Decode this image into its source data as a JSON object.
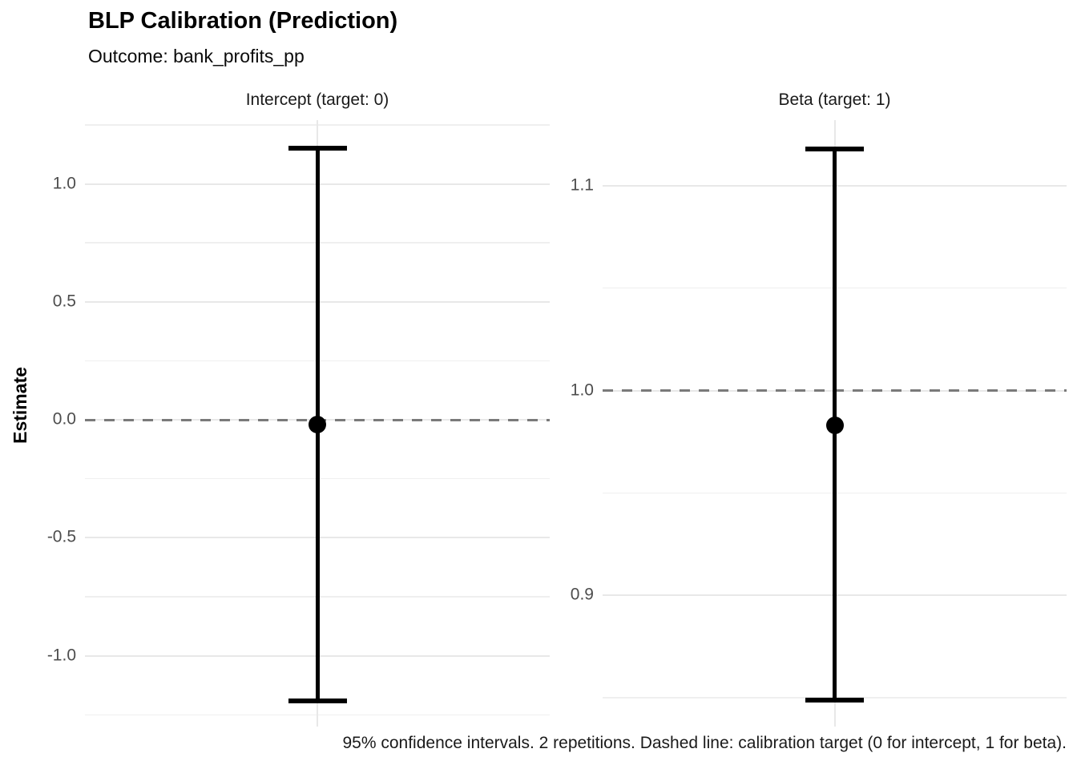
{
  "header": {
    "title": "BLP Calibration (Prediction)",
    "subtitle": "Outcome: bank_profits_pp"
  },
  "y_axis_title": "Estimate",
  "caption": "95% confidence intervals. 2 repetitions. Dashed line: calibration target (0 for intercept, 1 for beta).",
  "chart_data": {
    "type": "errorbar",
    "title": "BLP Calibration (Prediction)",
    "subtitle": "Outcome: bank_profits_pp",
    "ylabel": "Estimate",
    "xlabel": "",
    "legend_position": "none",
    "grid": true,
    "panels": [
      {
        "title": "Intercept (target: 0)",
        "target": 0,
        "estimate": -0.02,
        "ci_low": -1.19,
        "ci_high": 1.15,
        "ylim": [
          -1.3,
          1.27
        ],
        "yticks": [
          1.0,
          0.5,
          0.0,
          -0.5,
          -1.0
        ],
        "ytick_labels": [
          "1.0",
          "0.5",
          "0.0",
          "-0.5",
          "-1.0"
        ],
        "yminor_gridlines": [
          1.25,
          0.75,
          0.25,
          -0.25,
          -0.75,
          -1.25
        ]
      },
      {
        "title": "Beta (target: 1)",
        "target": 1,
        "estimate": 0.983,
        "ci_low": 0.849,
        "ci_high": 1.118,
        "ylim": [
          0.836,
          1.132
        ],
        "yticks": [
          1.1,
          1.0,
          0.9
        ],
        "ytick_labels": [
          "1.1",
          "1.0",
          "0.9"
        ],
        "yminor_gridlines": [
          1.05,
          0.95,
          0.85
        ]
      }
    ],
    "colors": {
      "point": "#000000",
      "error_bar": "#000000",
      "target_line": "#7a7a7a",
      "grid_major": "#e8e8e8",
      "grid_minor": "#efefef",
      "tick_label": "#4d4d4d"
    }
  }
}
